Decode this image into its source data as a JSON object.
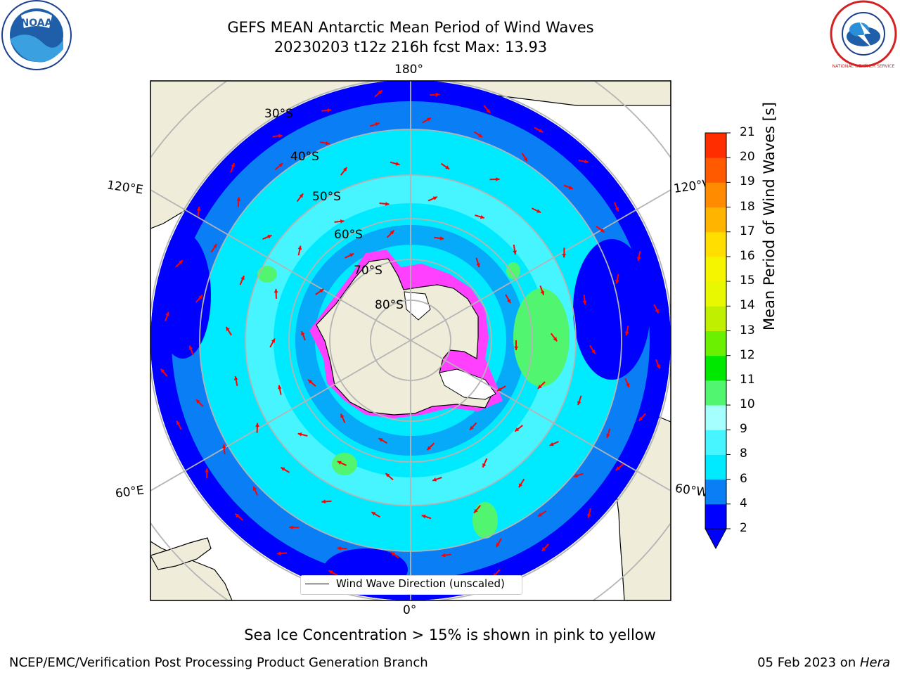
{
  "title": "GEFS MEAN Antarctic Mean Period of Wind Waves",
  "subtitle": "20230203 t12z 216h fcst   Max: 13.93",
  "longitude_labels": {
    "top": "180°",
    "bottom": "0°",
    "upper_left": "120°E",
    "upper_right": "120°W",
    "lower_left": "60°E",
    "lower_right": "60°W"
  },
  "latitude_labels": [
    "30°S",
    "40°S",
    "50°S",
    "60°S",
    "70°S",
    "80°S"
  ],
  "legend": {
    "label": "Wind Wave Direction (unscaled)"
  },
  "colorbar": {
    "label": "Mean Period of Wind Waves [s]",
    "ticks": [
      "2",
      "4",
      "6",
      "8",
      "9",
      "10",
      "11",
      "12",
      "13",
      "14",
      "15",
      "16",
      "17",
      "18",
      "19",
      "20",
      "21"
    ],
    "colors": [
      "#0000ff",
      "#0a7ff5",
      "#00eaff",
      "#46f5ff",
      "#a6ffff",
      "#52f570",
      "#00e800",
      "#6af000",
      "#c0f000",
      "#e8f800",
      "#f5f500",
      "#ffde00",
      "#ffb400",
      "#ff8c00",
      "#ff5a00",
      "#ff2d00"
    ],
    "extend": "min"
  },
  "footer_note": "Sea Ice Concentration > 15% is shown in pink to yellow",
  "credit_left": "NCEP/EMC/Verification Post Processing Product Generation Branch",
  "credit_right_date": "05 Feb 2023 on ",
  "credit_right_host": "Hera",
  "logos": {
    "left": "NOAA",
    "right": "NATIONAL WEATHER SERVICE"
  },
  "colors": {
    "land": "#efedda",
    "ocean_outer": "#0000ff",
    "ocean_mid": "#0a7ff5",
    "ocean_main": "#00eaff",
    "arrow": "#ff0000",
    "grid": "#b4b4b4",
    "ice": "#ff40ff"
  }
}
